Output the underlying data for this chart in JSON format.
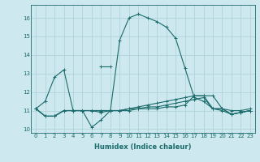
{
  "xlabel": "Humidex (Indice chaleur)",
  "xlim": [
    -0.5,
    23.5
  ],
  "ylim": [
    9.8,
    16.7
  ],
  "yticks": [
    10,
    11,
    12,
    13,
    14,
    15,
    16
  ],
  "xticks": [
    0,
    1,
    2,
    3,
    4,
    5,
    6,
    7,
    8,
    9,
    10,
    11,
    12,
    13,
    14,
    15,
    16,
    17,
    18,
    19,
    20,
    21,
    22,
    23
  ],
  "bg_color": "#cde8ee",
  "line_color": "#1a6b6b",
  "grid_color": "#b0d4da",
  "lines": [
    {
      "x": [
        0,
        1,
        2,
        3,
        4,
        5,
        6,
        7,
        8,
        9,
        10,
        11,
        12,
        13,
        14,
        15,
        16,
        17,
        18,
        19,
        20,
        21,
        22,
        23
      ],
      "y": [
        11.1,
        11.5,
        12.8,
        13.2,
        11.0,
        11.0,
        10.1,
        10.5,
        11.0,
        14.8,
        16.0,
        16.2,
        16.0,
        15.8,
        15.5,
        14.9,
        13.3,
        11.7,
        11.5,
        11.1,
        11.1,
        10.8,
        10.9,
        11.0
      ]
    },
    {
      "x": [
        7.0,
        8.0
      ],
      "y": [
        13.4,
        13.4
      ]
    },
    {
      "x": [
        0,
        1,
        2,
        3,
        4,
        5,
        6,
        7,
        8,
        9,
        10,
        11,
        12,
        13,
        14,
        15,
        16,
        17,
        18,
        19,
        20,
        21,
        22,
        23
      ],
      "y": [
        11.1,
        10.7,
        10.7,
        11.0,
        11.0,
        11.0,
        11.0,
        10.9,
        11.0,
        11.0,
        11.0,
        11.1,
        11.2,
        11.2,
        11.3,
        11.4,
        11.5,
        11.6,
        11.7,
        11.1,
        11.0,
        10.8,
        10.9,
        11.0
      ]
    },
    {
      "x": [
        0,
        1,
        2,
        3,
        4,
        5,
        6,
        7,
        8,
        9,
        10,
        11,
        12,
        13,
        14,
        15,
        16,
        17,
        18,
        19,
        20,
        21,
        22,
        23
      ],
      "y": [
        11.1,
        10.7,
        10.7,
        11.0,
        11.0,
        11.0,
        11.0,
        11.0,
        11.0,
        11.0,
        11.1,
        11.2,
        11.3,
        11.4,
        11.5,
        11.6,
        11.7,
        11.8,
        11.8,
        11.1,
        11.1,
        11.0,
        11.0,
        11.1
      ]
    },
    {
      "x": [
        0,
        1,
        2,
        3,
        4,
        5,
        6,
        7,
        8,
        9,
        10,
        11,
        12,
        13,
        14,
        15,
        16,
        17,
        18,
        19,
        20,
        21,
        22,
        23
      ],
      "y": [
        11.1,
        10.7,
        10.7,
        11.0,
        11.0,
        11.0,
        11.0,
        11.0,
        11.0,
        11.0,
        11.1,
        11.1,
        11.1,
        11.1,
        11.2,
        11.2,
        11.3,
        11.8,
        11.8,
        11.8,
        11.1,
        10.8,
        10.9,
        11.0
      ]
    }
  ]
}
